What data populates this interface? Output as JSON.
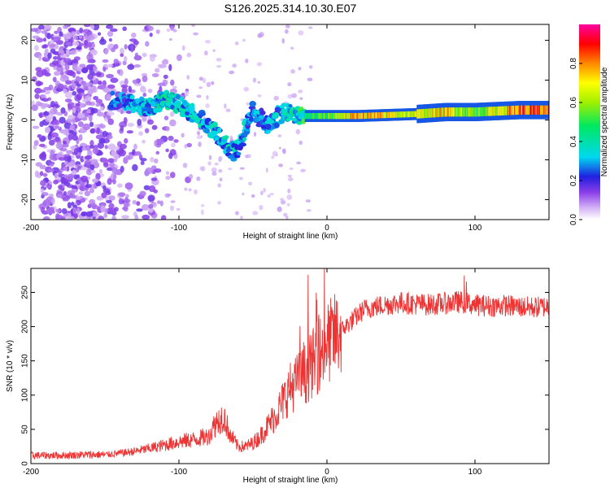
{
  "chart_data": [
    {
      "type": "heatmap",
      "title": "S126.2025.314.10.30.E07",
      "xlabel": "Height of straight line (km)",
      "ylabel": "Frequency (Hz)",
      "xlim": [
        -200,
        150
      ],
      "ylim": [
        -25,
        24
      ],
      "x_ticks": [
        -200,
        -100,
        0,
        100
      ],
      "y_ticks": [
        -20,
        -10,
        0,
        10,
        20
      ],
      "colorbar": {
        "label": "Normalized spectral amplitude",
        "range": [
          0,
          1
        ],
        "ticks": [
          "0.0",
          "0.2",
          "0.4",
          "0.6",
          "0.8"
        ]
      },
      "description_points": [
        {
          "x": -140,
          "y": 5,
          "amp": 0.3
        },
        {
          "x": -120,
          "y": 3,
          "amp": 0.35
        },
        {
          "x": -110,
          "y": 5,
          "amp": 0.4
        },
        {
          "x": -100,
          "y": 4,
          "amp": 0.4
        },
        {
          "x": -85,
          "y": 0,
          "amp": 0.35
        },
        {
          "x": -70,
          "y": -5,
          "amp": 0.35
        },
        {
          "x": -62,
          "y": -9,
          "amp": 0.4
        },
        {
          "x": -50,
          "y": 3,
          "amp": 0.3
        },
        {
          "x": -40,
          "y": -2,
          "amp": 0.3
        },
        {
          "x": -30,
          "y": 2,
          "amp": 0.35
        },
        {
          "x": -15,
          "y": 1,
          "amp": 0.5
        },
        {
          "x": 0,
          "y": 1,
          "amp": 0.6
        },
        {
          "x": 20,
          "y": 1,
          "amp": 0.85
        },
        {
          "x": 60,
          "y": 1.5,
          "amp": 0.7
        },
        {
          "x": 80,
          "y": 2,
          "amp": 0.8
        },
        {
          "x": 100,
          "y": 2,
          "amp": 0.6
        },
        {
          "x": 130,
          "y": 2.5,
          "amp": 0.9
        }
      ]
    },
    {
      "type": "line",
      "xlabel": "Height of straight line (km)",
      "ylabel": "SNR (10 * v/v)",
      "xlim": [
        -200,
        150
      ],
      "ylim": [
        0,
        285
      ],
      "x_ticks": [
        -200,
        -100,
        0,
        100
      ],
      "y_ticks": [
        0,
        50,
        100,
        150,
        200,
        250
      ],
      "color": "#ee3333",
      "series": [
        {
          "name": "SNR",
          "x": [
            -200,
            -180,
            -160,
            -150,
            -140,
            -130,
            -120,
            -110,
            -100,
            -90,
            -80,
            -75,
            -70,
            -65,
            -60,
            -55,
            -50,
            -45,
            -40,
            -35,
            -30,
            -25,
            -20,
            -15,
            -10,
            -5,
            0,
            5,
            10,
            15,
            20,
            25,
            30,
            35,
            40,
            50,
            60,
            70,
            80,
            90,
            100,
            110,
            120,
            130,
            140,
            150
          ],
          "values": [
            12,
            12,
            13,
            13,
            15,
            18,
            22,
            27,
            32,
            35,
            40,
            60,
            70,
            40,
            25,
            25,
            30,
            40,
            55,
            70,
            90,
            110,
            120,
            130,
            145,
            160,
            175,
            185,
            195,
            205,
            215,
            225,
            228,
            230,
            232,
            235,
            233,
            232,
            234,
            236,
            232,
            230,
            231,
            229,
            228,
            230
          ]
        }
      ]
    }
  ]
}
